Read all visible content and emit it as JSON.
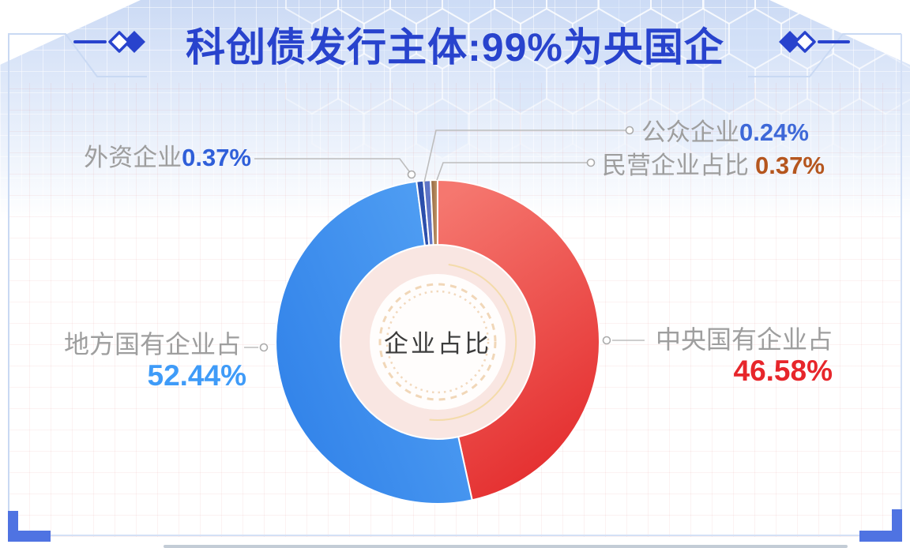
{
  "title": {
    "text": "科创债发行主体:99%为央国企"
  },
  "frame": {
    "accent_color": "#2843CD",
    "bracket_color": "#4F73E2",
    "border_color": "#C9D9F3"
  },
  "chart_data": {
    "type": "pie",
    "subtype": "donut",
    "title": "科创债发行主体:99%为央国企",
    "center_label": "企业占比",
    "unit": "%",
    "start_angle_deg": 0,
    "direction": "clockwise",
    "slices": [
      {
        "key": "zhongyang",
        "name": "中央国有企业占",
        "value": 46.58,
        "color": "#E8423E",
        "gradient": [
          "#F5776F",
          "#E42D2E"
        ]
      },
      {
        "key": "difang",
        "name": "地方国有企业占",
        "value": 52.44,
        "color": "#3B8DEE",
        "gradient": [
          "#54A2F4",
          "#3182E9"
        ]
      },
      {
        "key": "waizi",
        "name": "外资企业",
        "value": 0.37,
        "color": "#2C4FAC",
        "gradient": [
          "#2C4FAC",
          "#2C4FAC"
        ]
      },
      {
        "key": "gongzhong",
        "name": "公众企业",
        "value": 0.24,
        "color": "#5F74C6",
        "gradient": [
          "#5F74C6",
          "#5F74C6"
        ]
      },
      {
        "key": "minying",
        "name": "民营企业占比",
        "value": 0.37,
        "color": "#A0724C",
        "gradient": [
          "#8C5E37",
          "#C69B6E"
        ]
      }
    ]
  },
  "callouts": {
    "waizi": {
      "label": "外资企业",
      "value": "0.37%",
      "value_color": "#2F5FD9"
    },
    "gongzhong": {
      "label": "公众企业",
      "value": "0.24%",
      "value_color": "#3E68D8"
    },
    "minying": {
      "label": "民营企业占比",
      "value": "0.37%",
      "value_color": "#B5561E"
    },
    "difang": {
      "label": "地方国有企业占",
      "value": "52.44%",
      "value_color": "#3F9BF8"
    },
    "zhongyang": {
      "label": "中央国有企业占",
      "value": "46.58%",
      "value_color": "#E7262B"
    }
  }
}
